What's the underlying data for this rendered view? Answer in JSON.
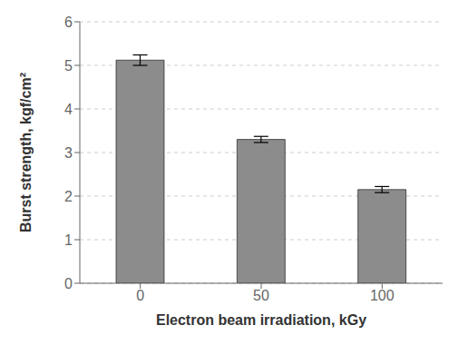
{
  "chart_data": {
    "type": "bar",
    "categories": [
      "0",
      "50",
      "100"
    ],
    "values": [
      5.12,
      3.3,
      2.15
    ],
    "errors": [
      0.12,
      0.07,
      0.07
    ],
    "color": "#8c8c8c",
    "xlabel": "Electron beam irradiation, kGy",
    "ylabel": "Burst strength, kgf/cm²",
    "ylim": [
      0,
      6
    ],
    "yticks": [
      0,
      1,
      2,
      3,
      4,
      5,
      6
    ],
    "grid": true
  }
}
